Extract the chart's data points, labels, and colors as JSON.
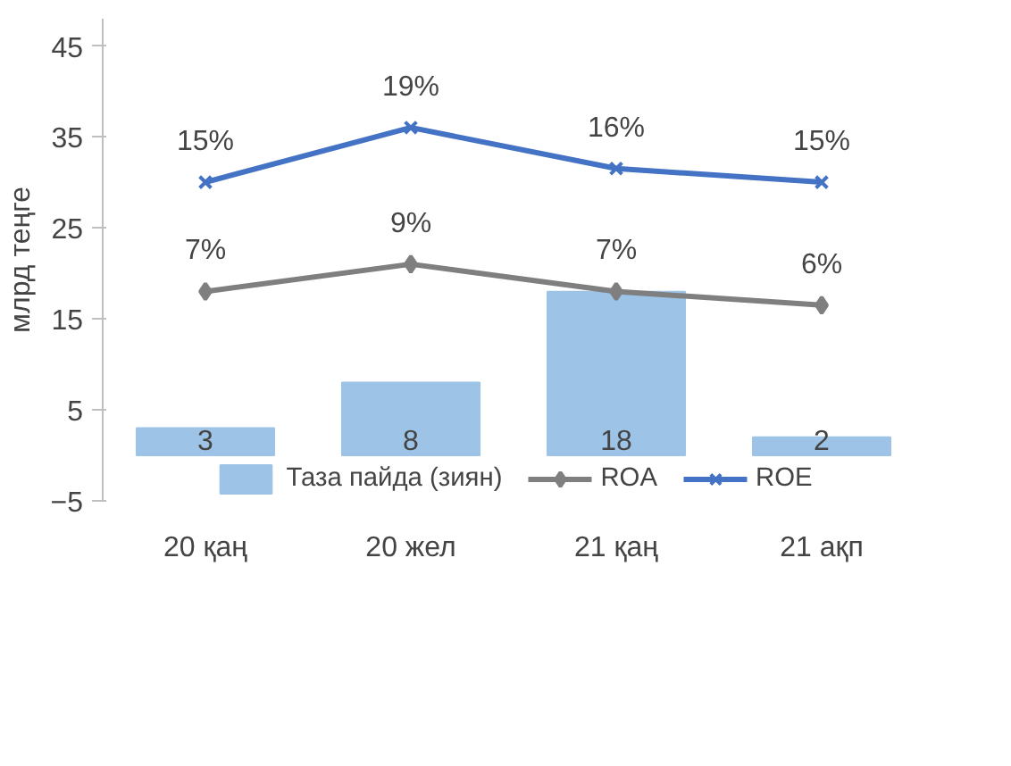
{
  "chart_data": {
    "type": "bar",
    "ylabel": "млрд теңге",
    "categories": [
      "20 қаң",
      "20 жел",
      "21 қаң",
      "21 ақп"
    ],
    "ylim": [
      -5,
      48
    ],
    "yticks": [
      -5,
      5,
      15,
      25,
      35,
      45
    ],
    "y2lim": [
      -8.33,
      26.97
    ],
    "grid": false,
    "legend": "bottom",
    "series": [
      {
        "name": "Таза пайда (зиян)",
        "color": "#9dc3e6",
        "values": [
          3,
          8,
          18,
          2
        ],
        "data_labels": true
      },
      {
        "name": "ROA",
        "type": "line",
        "axis": "y2",
        "marker": "diamond",
        "color": "#7f7f7f",
        "values": [
          7,
          9,
          7,
          6
        ],
        "value_labels": [
          "7%",
          "9%",
          "7%",
          "6%"
        ]
      },
      {
        "name": "ROE",
        "type": "line",
        "axis": "y2",
        "marker": "cross",
        "color": "#4472c4",
        "values": [
          15,
          19,
          16,
          15
        ],
        "value_labels": [
          "15%",
          "19%",
          "16%",
          "15%"
        ]
      }
    ]
  }
}
